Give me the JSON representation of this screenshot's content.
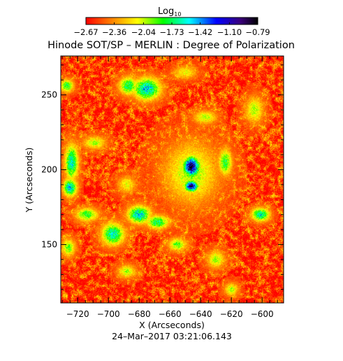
{
  "chart_data": {
    "type": "heatmap",
    "title": "Hinode SOT/SP – MERLIN : Degree of Polarization",
    "xlabel": "X (Arcseconds)",
    "ylabel": "Y (Arcseconds)",
    "xlim": [
      -731,
      -586
    ],
    "ylim": [
      111,
      276
    ],
    "x_ticks": [
      -720,
      -700,
      -680,
      -660,
      -640,
      -620,
      -600
    ],
    "x_tick_labels": [
      "−720",
      "−700",
      "−680",
      "−660",
      "−640",
      "−620",
      "−600"
    ],
    "y_ticks": [
      150,
      200,
      250
    ],
    "y_tick_labels": [
      "150",
      "200",
      "250"
    ],
    "colorbar": {
      "label_base": "Log",
      "label_sub": "10",
      "min": -2.67,
      "max": -0.79,
      "ticks": [
        -2.67,
        -2.36,
        -2.04,
        -1.73,
        -1.42,
        -1.1,
        -0.79
      ],
      "tick_labels": [
        "−2.67",
        "−2.36",
        "−2.04",
        "−1.73",
        "−1.42",
        "−1.10",
        "−0.79"
      ],
      "colormap": [
        "#ff0000",
        "#ff7a00",
        "#ffff00",
        "#00ff00",
        "#00ffff",
        "#0000ff",
        "#3a007a",
        "#000000"
      ]
    },
    "background_level": -2.55,
    "features": [
      {
        "x": -646,
        "y": 202,
        "sigma_x": 3.5,
        "sigma_y": 4.5,
        "peak": -0.85
      },
      {
        "x": -646,
        "y": 189,
        "sigma_x": 3.0,
        "sigma_y": 2.5,
        "peak": -0.95
      },
      {
        "x": -646,
        "y": 198,
        "sigma_x": 12,
        "sigma_y": 14,
        "peak": -2.0
      },
      {
        "x": -675,
        "y": 254,
        "sigma_x": 6,
        "sigma_y": 5,
        "peak": -1.5
      },
      {
        "x": -687,
        "y": 256,
        "sigma_x": 4,
        "sigma_y": 4,
        "peak": -1.7
      },
      {
        "x": -724,
        "y": 205,
        "sigma_x": 3,
        "sigma_y": 8,
        "peak": -1.6
      },
      {
        "x": -725,
        "y": 188,
        "sigma_x": 3,
        "sigma_y": 4,
        "peak": -1.5
      },
      {
        "x": -714,
        "y": 170,
        "sigma_x": 5,
        "sigma_y": 3,
        "peak": -1.8
      },
      {
        "x": -680,
        "y": 170,
        "sigma_x": 5,
        "sigma_y": 4,
        "peak": -1.5
      },
      {
        "x": -668,
        "y": 165,
        "sigma_x": 5,
        "sigma_y": 3,
        "peak": -1.7
      },
      {
        "x": -697,
        "y": 157,
        "sigma_x": 5,
        "sigma_y": 5,
        "peak": -1.6
      },
      {
        "x": -601,
        "y": 170,
        "sigma_x": 4,
        "sigma_y": 3,
        "peak": -1.6
      },
      {
        "x": -624,
        "y": 205,
        "sigma_x": 3,
        "sigma_y": 6,
        "peak": -1.8
      },
      {
        "x": -727,
        "y": 256,
        "sigma_x": 3,
        "sigma_y": 3,
        "peak": -1.8
      },
      {
        "x": -605,
        "y": 240,
        "sigma_x": 4,
        "sigma_y": 6,
        "peak": -2.0
      },
      {
        "x": -637,
        "y": 235,
        "sigma_x": 5,
        "sigma_y": 3,
        "peak": -2.0
      },
      {
        "x": -709,
        "y": 218,
        "sigma_x": 5,
        "sigma_y": 3,
        "peak": -2.0
      },
      {
        "x": -655,
        "y": 150,
        "sigma_x": 4,
        "sigma_y": 3,
        "peak": -1.9
      },
      {
        "x": -620,
        "y": 120,
        "sigma_x": 3,
        "sigma_y": 3,
        "peak": -2.0
      },
      {
        "x": -688,
        "y": 132,
        "sigma_x": 4,
        "sigma_y": 3,
        "peak": -2.0
      },
      {
        "x": -726,
        "y": 148,
        "sigma_x": 3,
        "sigma_y": 4,
        "peak": -1.9
      },
      {
        "x": -630,
        "y": 140,
        "sigma_x": 4,
        "sigma_y": 4,
        "peak": -2.0
      },
      {
        "x": -688,
        "y": 190,
        "sigma_x": 4,
        "sigma_y": 4,
        "peak": -2.1
      },
      {
        "x": -650,
        "y": 265,
        "sigma_x": 5,
        "sigma_y": 3,
        "peak": -2.1
      }
    ]
  },
  "footer": {
    "timestamp": "24–Mar–2017 03:21:06.143"
  }
}
